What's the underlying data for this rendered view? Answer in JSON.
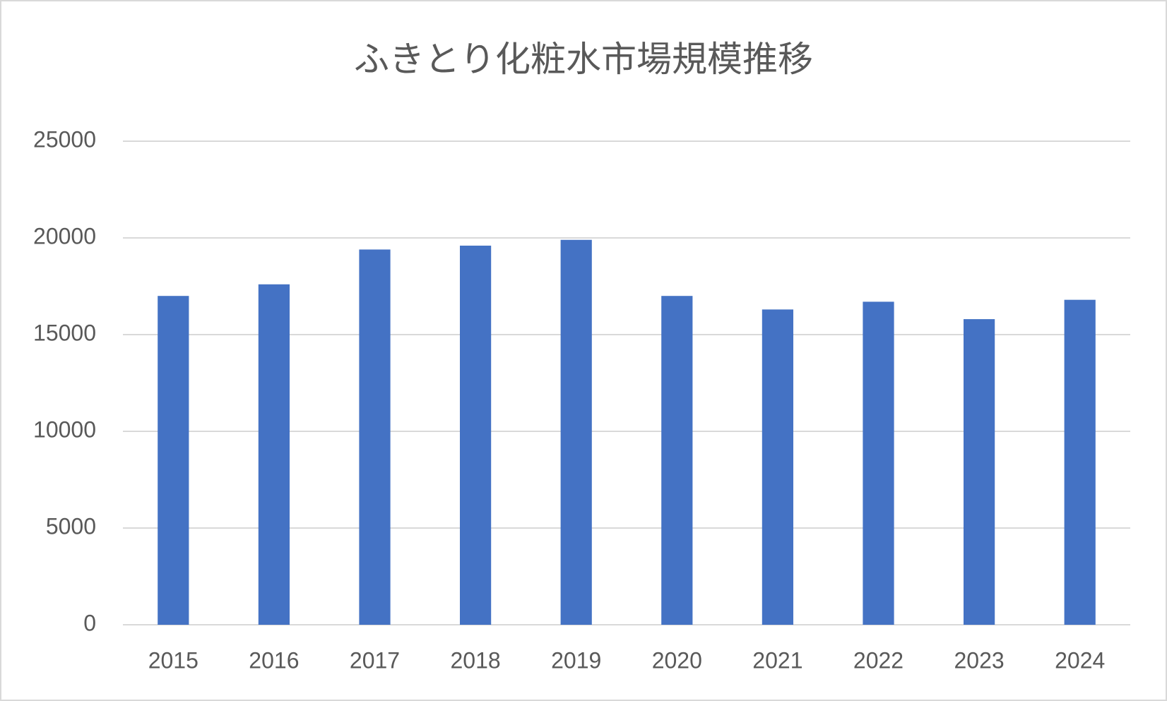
{
  "chart_data": {
    "type": "bar",
    "title": "ふきとり化粧水市場規模推移",
    "categories": [
      "2015",
      "2016",
      "2017",
      "2018",
      "2019",
      "2020",
      "2021",
      "2022",
      "2023",
      "2024"
    ],
    "values": [
      17000,
      17600,
      19400,
      19600,
      19900,
      17000,
      16300,
      16700,
      15800,
      16800
    ],
    "color": "#4472c4",
    "ylim": [
      0,
      25000
    ],
    "yticks": [
      0,
      5000,
      10000,
      15000,
      20000,
      25000
    ],
    "grid": true
  }
}
